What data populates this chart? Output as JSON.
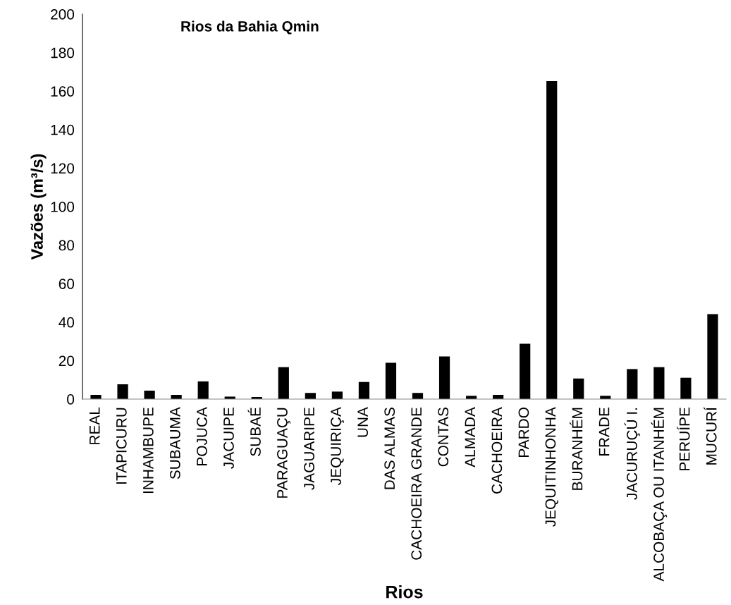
{
  "chart_data": {
    "type": "bar",
    "title": "Rios da Bahia Qmin",
    "xlabel": "Rios",
    "ylabel": "Vazões (m³/s)",
    "categories": [
      "REAL",
      "ITAPICURU",
      "INHAMBUPE",
      "SUBAUMA",
      "POJUCA",
      "JACUIPE",
      "SUBAÉ",
      "PARAGUAÇU",
      "JAGUARIPE",
      "JEQUIRIÇA",
      "UNA",
      "DAS ALMAS",
      "CACHOEIRA GRANDE",
      "CONTAS",
      "ALMADA",
      "CACHOEIRA",
      "PARDO",
      "JEQUITINHONHA",
      "BURANHÉM",
      "FRADE",
      "JACURUÇÚ I.",
      "ALCOBAÇA OU ITANHÉM",
      "PERUÍPE",
      "MUCURÍ"
    ],
    "values": [
      2.2,
      7.7,
      4.4,
      2.2,
      9.2,
      1.3,
      1.1,
      16.6,
      3.2,
      3.9,
      8.9,
      18.9,
      3.2,
      22.2,
      1.7,
      2.2,
      28.8,
      165.2,
      10.7,
      1.7,
      15.6,
      16.6,
      11.1,
      44.1
    ],
    "color": "#000000",
    "ylim": [
      0,
      200
    ],
    "yticks": [
      0,
      20,
      40,
      60,
      80,
      100,
      120,
      140,
      160,
      180,
      200
    ],
    "grid": false,
    "legend": false
  }
}
